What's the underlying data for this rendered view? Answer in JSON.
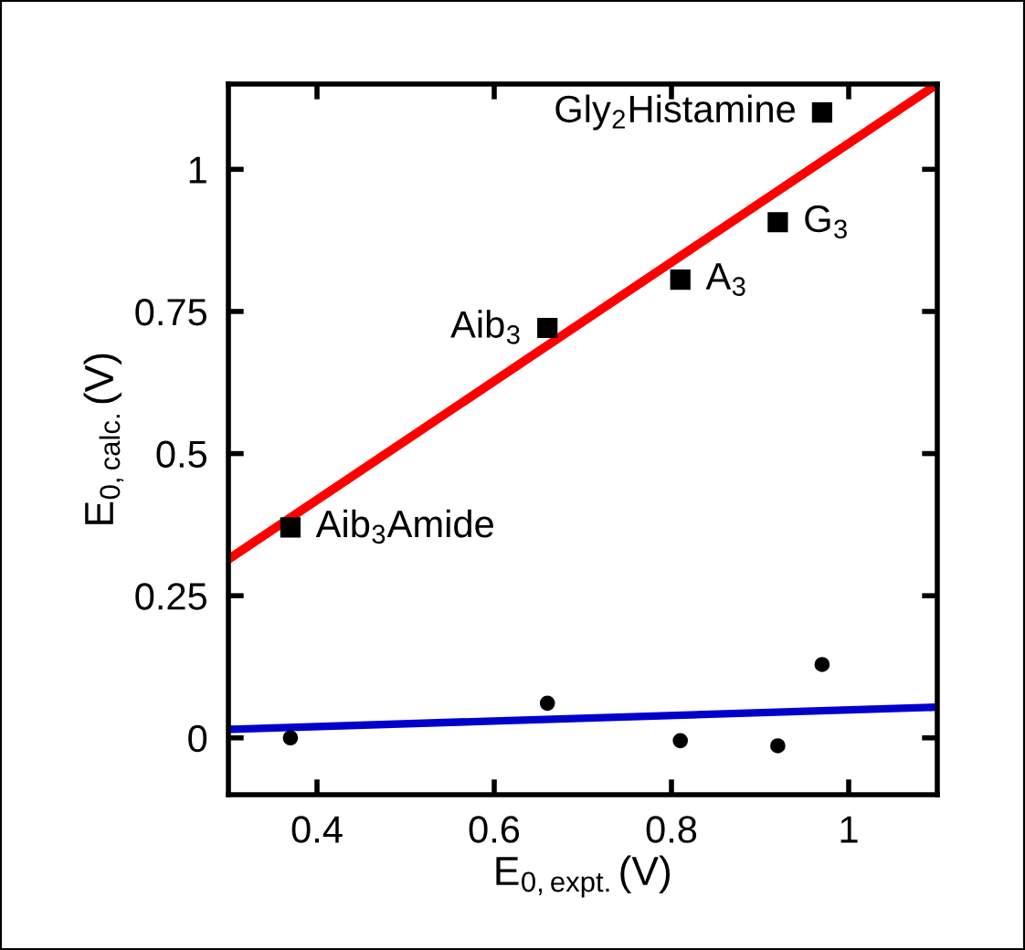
{
  "chart_data": {
    "type": "scatter",
    "xlabel": "E$_{0,expt.}$(V)",
    "ylabel": "E$_{0,calc.}$(V)",
    "xlim": [
      0.3,
      1.1
    ],
    "ylim": [
      -0.1,
      1.15
    ],
    "xticks": [
      0.4,
      0.6,
      0.8,
      1
    ],
    "yticks": [
      0,
      0.25,
      0.5,
      0.75,
      1
    ],
    "grid": false,
    "legend": false,
    "series": [
      {
        "marker": "square",
        "color": "#000000",
        "x": [
          0.37,
          0.66,
          0.81,
          0.92,
          0.97
        ],
        "values": [
          0.37,
          0.721,
          0.806,
          0.907,
          1.1
        ]
      },
      {
        "marker": "circle",
        "color": "#000000",
        "x": [
          0.37,
          0.66,
          0.81,
          0.92,
          0.97
        ],
        "values": [
          0.0,
          0.061,
          -0.005,
          -0.014,
          0.129
        ]
      },
      {
        "type": "line",
        "marker": "none",
        "color": "#ff0000",
        "x": [
          0.3,
          1.1
        ],
        "values": [
          0.314,
          1.15
        ]
      },
      {
        "type": "line",
        "marker": "none",
        "color": "#0000cc",
        "x": [
          0.3,
          1.1
        ],
        "values": [
          0.015,
          0.054
        ]
      }
    ],
    "annotations": [
      {
        "text": "Aib$_{3}$Amide",
        "x": 0.37,
        "y": 0.37
      },
      {
        "text": "Aib$_{3}$",
        "x": 0.66,
        "y": 0.721
      },
      {
        "text": "A$_{3}$",
        "x": 0.81,
        "y": 0.806
      },
      {
        "text": "G$_{3}$",
        "x": 0.92,
        "y": 0.907
      },
      {
        "text": "Gly$_{2}$Histamine",
        "x": 0.97,
        "y": 1.1
      }
    ]
  }
}
